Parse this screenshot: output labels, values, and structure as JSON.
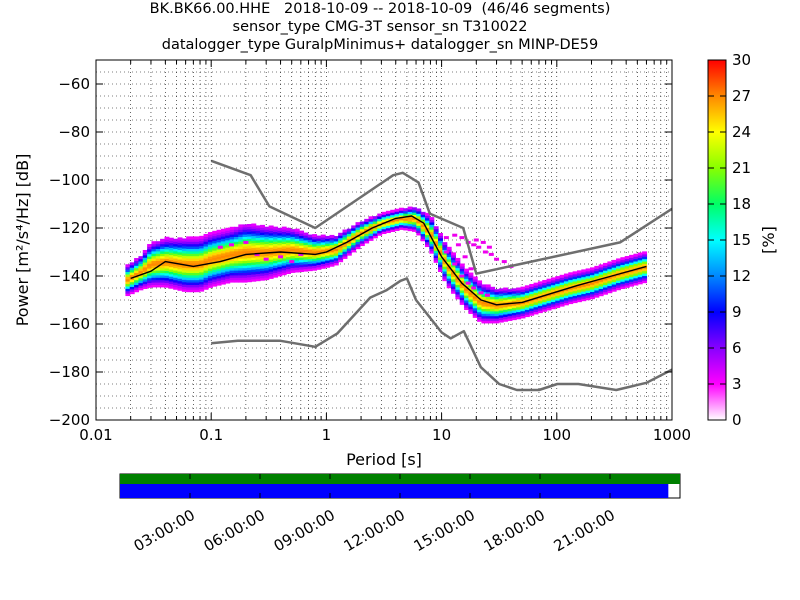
{
  "title": {
    "line1": "BK.BK66.00.HHE   2018-10-09 -- 2018-10-09  (46/46 segments)",
    "line2": "sensor_type CMG-3T sensor_sn T310022",
    "line3": "datalogger_type GuralpMinimus+ datalogger_sn MINP-DE59"
  },
  "chart_data": {
    "type": "heatmap",
    "xlabel": "Period [s]",
    "ylabel": "Power [m²/s⁴/Hz] [dB]",
    "xscale": "log",
    "xlim": [
      0.01,
      1000
    ],
    "ylim": [
      -200,
      -50
    ],
    "x_ticks": [
      0.01,
      0.1,
      1,
      10,
      100,
      1000
    ],
    "x_tick_labels": [
      "0.01",
      "0.1",
      "1",
      "10",
      "100",
      "1000"
    ],
    "y_ticks": [
      -200,
      -180,
      -160,
      -140,
      -120,
      -100,
      -80,
      -60
    ],
    "grid": "dotted",
    "colorbar": {
      "label": "[%]",
      "range": [
        0,
        30
      ],
      "ticks": [
        0,
        3,
        6,
        9,
        12,
        15,
        18,
        21,
        24,
        27,
        30
      ],
      "colormap": [
        "#ffffff",
        "#ff00ff",
        "#8800ff",
        "#0000ff",
        "#0088ff",
        "#00ffff",
        "#00ff66",
        "#88ff00",
        "#ffff00",
        "#ff8800",
        "#ff0000"
      ]
    },
    "series": [
      {
        "role": "noise-model-high",
        "color": "#6e6e6e",
        "points": [
          [
            0.1,
            -92
          ],
          [
            0.22,
            -98
          ],
          [
            0.32,
            -111
          ],
          [
            0.8,
            -120
          ],
          [
            3.8,
            -98
          ],
          [
            4.6,
            -97
          ],
          [
            6.3,
            -101
          ],
          [
            7.9,
            -114
          ],
          [
            15.4,
            -120
          ],
          [
            20.0,
            -139
          ],
          [
            354,
            -126
          ],
          [
            1000,
            -112
          ]
        ]
      },
      {
        "role": "noise-model-low",
        "color": "#6e6e6e",
        "points": [
          [
            0.1,
            -168
          ],
          [
            0.17,
            -167
          ],
          [
            0.4,
            -167
          ],
          [
            0.8,
            -169.5
          ],
          [
            1.24,
            -164
          ],
          [
            2.4,
            -149
          ],
          [
            3.3,
            -146
          ],
          [
            4.4,
            -142
          ],
          [
            5.0,
            -141
          ],
          [
            6.0,
            -150
          ],
          [
            10,
            -163.5
          ],
          [
            12,
            -166
          ],
          [
            15.6,
            -163
          ],
          [
            21.9,
            -178
          ],
          [
            31.6,
            -185
          ],
          [
            45,
            -187.5
          ],
          [
            70,
            -187.5
          ],
          [
            101,
            -185
          ],
          [
            154,
            -185
          ],
          [
            328,
            -187.5
          ],
          [
            600,
            -184.5
          ],
          [
            1000,
            -179
          ]
        ]
      },
      {
        "role": "mode-curve",
        "color": "#000000",
        "points": [
          [
            0.02,
            -141
          ],
          [
            0.03,
            -138
          ],
          [
            0.04,
            -134
          ],
          [
            0.07,
            -136
          ],
          [
            0.12,
            -134
          ],
          [
            0.2,
            -131
          ],
          [
            0.4,
            -130
          ],
          [
            0.8,
            -131
          ],
          [
            1.0,
            -130
          ],
          [
            1.5,
            -126
          ],
          [
            2.5,
            -120
          ],
          [
            4.0,
            -116
          ],
          [
            5.5,
            -115
          ],
          [
            7.0,
            -118
          ],
          [
            10,
            -132
          ],
          [
            15,
            -143
          ],
          [
            22,
            -150
          ],
          [
            30,
            -152
          ],
          [
            50,
            -151
          ],
          [
            80,
            -148
          ],
          [
            150,
            -144
          ],
          [
            300,
            -140
          ],
          [
            600,
            -136
          ]
        ]
      }
    ],
    "psd_band": [
      [
        0.018,
        -142,
        6
      ],
      [
        0.025,
        -138,
        7
      ],
      [
        0.03,
        -135,
        9
      ],
      [
        0.04,
        -134,
        10
      ],
      [
        0.06,
        -135,
        11
      ],
      [
        0.08,
        -135,
        11
      ],
      [
        0.1,
        -133,
        11
      ],
      [
        0.15,
        -131,
        11
      ],
      [
        0.2,
        -130,
        12
      ],
      [
        0.3,
        -130,
        11
      ],
      [
        0.5,
        -129,
        9
      ],
      [
        0.8,
        -130,
        7
      ],
      [
        1.2,
        -129,
        6
      ],
      [
        2.0,
        -122,
        5
      ],
      [
        3.0,
        -118,
        4
      ],
      [
        4.5,
        -116,
        4
      ],
      [
        6.0,
        -116,
        5
      ],
      [
        8.0,
        -122,
        7
      ],
      [
        11,
        -135,
        8
      ],
      [
        16,
        -145,
        8
      ],
      [
        22,
        -151,
        8
      ],
      [
        30,
        -152,
        7
      ],
      [
        50,
        -151,
        6
      ],
      [
        80,
        -148,
        6
      ],
      [
        130,
        -145,
        6
      ],
      [
        200,
        -143,
        6
      ],
      [
        350,
        -139,
        6
      ],
      [
        600,
        -136,
        6
      ]
    ],
    "outlier_points": [
      [
        11,
        -124
      ],
      [
        13,
        -123
      ],
      [
        15,
        -124
      ],
      [
        17,
        -126
      ],
      [
        19,
        -127
      ],
      [
        21,
        -128
      ],
      [
        24,
        -130
      ],
      [
        27,
        -131
      ],
      [
        30,
        -133
      ],
      [
        35,
        -134
      ],
      [
        40,
        -136
      ],
      [
        11,
        -130
      ],
      [
        13,
        -135
      ],
      [
        15,
        -140
      ],
      [
        17,
        -143
      ],
      [
        19,
        -145
      ],
      [
        22,
        -147
      ],
      [
        25,
        -148
      ],
      [
        20,
        -125
      ],
      [
        23,
        -126
      ],
      [
        26,
        -128
      ],
      [
        14,
        -127
      ],
      [
        16,
        -132
      ],
      [
        18,
        -137
      ],
      [
        0.12,
        -128
      ],
      [
        0.15,
        -127
      ],
      [
        0.2,
        -126
      ],
      [
        0.25,
        -131
      ],
      [
        0.3,
        -133
      ],
      [
        0.4,
        -132
      ],
      [
        0.5,
        -134
      ],
      [
        0.6,
        -131
      ]
    ],
    "timeline": {
      "tick_labels": [
        "03:00:00",
        "06:00:00",
        "09:00:00",
        "12:00:00",
        "15:00:00",
        "18:00:00",
        "21:00:00"
      ],
      "tick_hours": [
        3,
        6,
        9,
        12,
        15,
        18,
        21
      ],
      "range_hours": [
        0,
        24
      ],
      "data_coverage_hours": [
        0,
        24
      ],
      "psd_coverage_hours": [
        0,
        23.5
      ],
      "data_color": "#008000",
      "psd_color": "#0000ff"
    }
  }
}
